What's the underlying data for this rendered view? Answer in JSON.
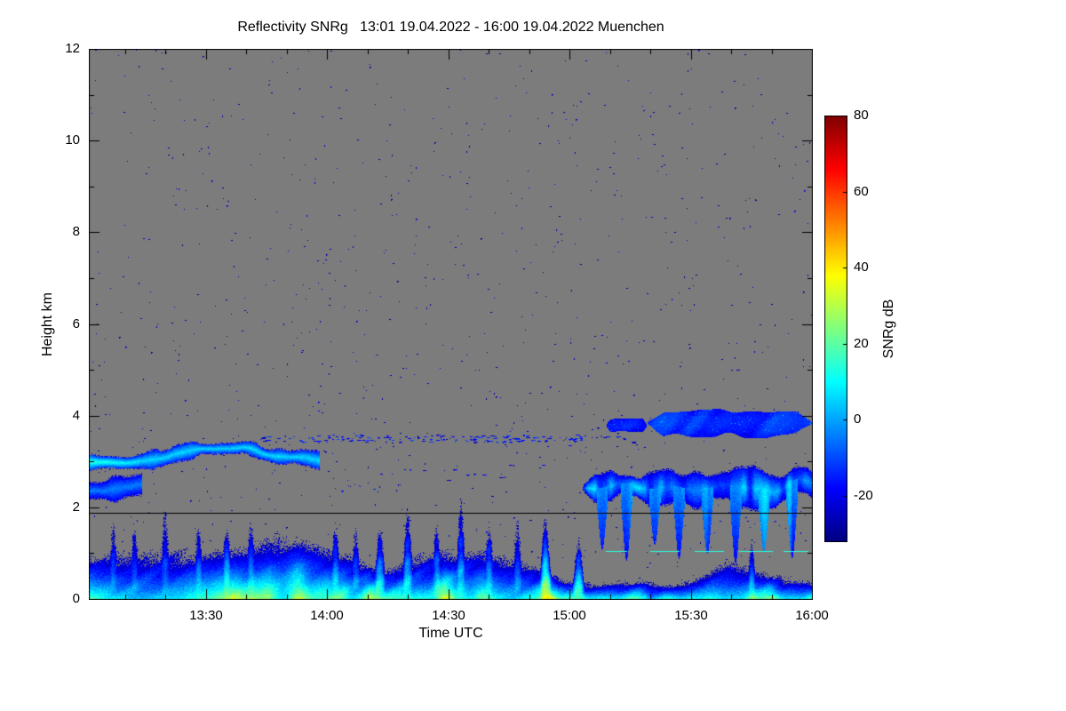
{
  "page": {
    "background_color": "#ffffff"
  },
  "chart_data": {
    "type": "heatmap",
    "title": "Reflectivity SNRg   13:01 19.04.2022 - 16:00 19.04.2022 Muenchen",
    "product": "Reflectivity SNRg",
    "time_start": "13:01 19.04.2022",
    "time_end": "16:00 19.04.2022",
    "station": "Muenchen",
    "xlabel": "Time UTC",
    "ylabel": "Height km",
    "x_range_minutes": [
      0,
      179
    ],
    "x_ticks": [
      {
        "minute": 29,
        "label": "13:30"
      },
      {
        "minute": 59,
        "label": "14:00"
      },
      {
        "minute": 89,
        "label": "14:30"
      },
      {
        "minute": 119,
        "label": "15:00"
      },
      {
        "minute": 149,
        "label": "15:30"
      },
      {
        "minute": 179,
        "label": "16:00"
      }
    ],
    "x_minor_step_minutes": 10,
    "y_range_km": [
      0,
      12
    ],
    "y_ticks_km": [
      0,
      2,
      4,
      6,
      8,
      10,
      12
    ],
    "y_minor_ticks_km": [
      1,
      3,
      5,
      7,
      9,
      11
    ],
    "background_color": "#7c7c7c",
    "colorbar": {
      "label": "SNRg dB",
      "min": -32,
      "max": 80,
      "ticks": [
        80,
        60,
        40,
        20,
        0,
        -20
      ],
      "colormap": "jet"
    },
    "features": [
      {
        "type": "noise_speckles",
        "count": 1400,
        "value_range": [
          -31,
          -21
        ],
        "seed": 7
      },
      {
        "type": "boundary_layer",
        "envelope": [
          [
            0,
            0.95
          ],
          [
            15,
            1.05
          ],
          [
            30,
            0.95
          ],
          [
            45,
            1.1
          ],
          [
            60,
            1.0
          ],
          [
            75,
            1.05
          ],
          [
            90,
            1.0
          ],
          [
            105,
            0.9
          ],
          [
            112,
            0.7
          ],
          [
            118,
            0.4
          ],
          [
            130,
            0.3
          ],
          [
            142,
            0.32
          ],
          [
            152,
            0.5
          ],
          [
            158,
            0.7
          ],
          [
            166,
            0.55
          ],
          [
            172,
            0.4
          ],
          [
            179,
            0.45
          ]
        ],
        "base_top_km": 1.25,
        "ground_db_range": [
          6,
          32
        ],
        "plumes": [
          {
            "t": 6,
            "top_km": 1.4
          },
          {
            "t": 11,
            "top_km": 1.8
          },
          {
            "t": 19,
            "top_km": 2.1
          },
          {
            "t": 27,
            "top_km": 1.6
          },
          {
            "t": 34,
            "top_km": 1.5
          },
          {
            "t": 40,
            "top_km": 1.9
          },
          {
            "t": 47,
            "top_km": 1.7
          },
          {
            "t": 54,
            "top_km": 1.6
          },
          {
            "t": 61,
            "top_km": 1.9
          },
          {
            "t": 66,
            "top_km": 1.5
          },
          {
            "t": 72,
            "top_km": 1.8
          },
          {
            "t": 79,
            "top_km": 2.0
          },
          {
            "t": 86,
            "top_km": 1.7
          },
          {
            "t": 92,
            "top_km": 2.0
          },
          {
            "t": 99,
            "top_km": 1.8
          },
          {
            "t": 106,
            "top_km": 1.6
          },
          {
            "t": 113,
            "top_km": 2.2
          },
          {
            "t": 121,
            "top_km": 1.5
          },
          {
            "t": 164,
            "top_km": 1.0
          }
        ],
        "core_times": [
          36,
          44,
          52,
          70,
          88,
          97,
          113,
          164
        ],
        "seed": 11
      },
      {
        "type": "cloud_band",
        "name": "morning-layer-low",
        "t0": 0,
        "t1": 13,
        "center_km": [
          [
            0,
            2.35
          ],
          [
            7,
            2.45
          ],
          [
            13,
            2.55
          ]
        ],
        "half_thick_km": 0.27,
        "core_db": -4,
        "edge_db": -23,
        "seed": 22
      },
      {
        "type": "cloud_band",
        "name": "morning-cloud-layer",
        "t0": 0,
        "t1": 57,
        "center_km": [
          [
            0,
            3.0
          ],
          [
            10,
            3.0
          ],
          [
            20,
            3.1
          ],
          [
            30,
            3.3
          ],
          [
            38,
            3.3
          ],
          [
            46,
            3.15
          ],
          [
            57,
            3.05
          ]
        ],
        "half_thick_km": 0.17,
        "core_db": 6,
        "edge_db": -20,
        "bright_until_t": 14,
        "seed": 21
      },
      {
        "type": "scatter_band",
        "name": "thin-layer-3.5km",
        "t0": 42,
        "t1": 122,
        "y0_km": 3.42,
        "y1_km": 3.58,
        "density": 0.45,
        "value_range": [
          -24,
          -10
        ],
        "seed": 31
      },
      {
        "type": "scatter_band",
        "name": "midlevel-wisps",
        "t0": 55,
        "t1": 118,
        "y0_km": 2.2,
        "y1_km": 3.0,
        "density": 0.06,
        "value_range": [
          -26,
          -14
        ],
        "seed": 32
      },
      {
        "type": "scatter_band",
        "name": "upper-speckle-band",
        "t0": 118,
        "t1": 135,
        "y0_km": 3.35,
        "y1_km": 3.6,
        "density": 0.15,
        "value_range": [
          -26,
          -16
        ],
        "seed": 33
      },
      {
        "type": "cloud_complex",
        "name": "afternoon-cloud",
        "t0": 122,
        "t1": 179,
        "center_km": 2.5,
        "half_thick_km": 0.38,
        "core_db_range": [
          -14,
          12
        ],
        "fall_streaks": [
          {
            "t": 127,
            "bottom_km": 1.1
          },
          {
            "t": 133,
            "bottom_km": 0.85
          },
          {
            "t": 140,
            "bottom_km": 1.2
          },
          {
            "t": 146,
            "bottom_km": 0.9
          },
          {
            "t": 153,
            "bottom_km": 1.0
          },
          {
            "t": 160,
            "bottom_km": 0.8
          },
          {
            "t": 167,
            "bottom_km": 1.05
          },
          {
            "t": 174,
            "bottom_km": 0.9
          }
        ],
        "seed": 41
      },
      {
        "type": "cloud_patch",
        "name": "upper-patch-left",
        "t0": 128,
        "t1": 138,
        "y0_km": 3.65,
        "y1_km": 3.95,
        "core_db": -14,
        "seed": 51
      },
      {
        "type": "cloud_patch",
        "name": "upper-patch-main",
        "t0": 138,
        "t1": 179,
        "y0_km": 3.55,
        "y1_km": 4.15,
        "core_db": -12,
        "seed": 52
      },
      {
        "type": "dashed_line",
        "name": "cyan-dashed-1km",
        "y_km": 1.05,
        "segments_t": [
          [
            128,
            133
          ],
          [
            139,
            146
          ],
          [
            150,
            157
          ],
          [
            161,
            169
          ],
          [
            172,
            178
          ]
        ],
        "value_db": 14
      },
      {
        "type": "hline",
        "name": "black-level-line",
        "y_km": 1.88,
        "t0": 0,
        "t1": 179,
        "color": "#000000"
      }
    ]
  }
}
